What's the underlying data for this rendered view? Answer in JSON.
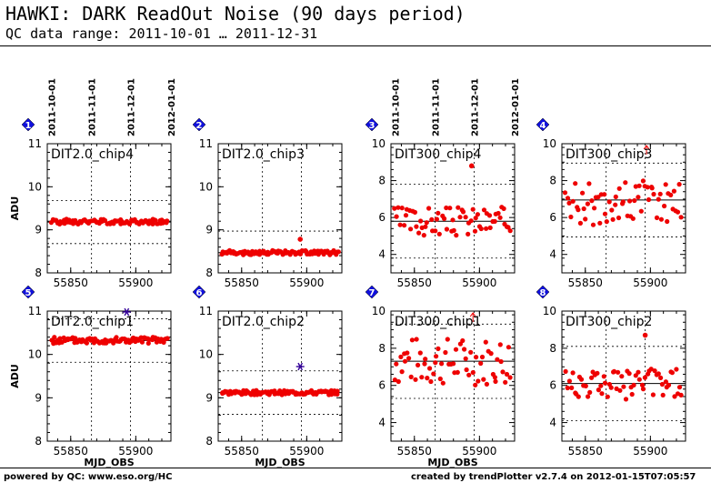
{
  "header": {
    "title": "HAWKI: DARK ReadOut Noise (90 days period)",
    "subtitle": "QC data range: 2011-10-01 … 2011-12-31"
  },
  "footer": {
    "left": "powered by QC: www.eso.org/HC",
    "right": "created by trendPlotter v2.7.4 on 2012-01-15T07:05:57"
  },
  "colors": {
    "points": "#ee0000",
    "outlier_star": "#330099",
    "marker_badge": "#1010dd",
    "arrow": "#ee0000"
  },
  "chart_data": [
    {
      "type": "scatter",
      "panel": "1",
      "label": "DIT2.0_chip4",
      "ylabel": "ADU",
      "xlabel": "",
      "ylim": [
        8,
        11
      ],
      "yticks": [
        8,
        9,
        10,
        11
      ],
      "xlim": [
        55832,
        55927
      ],
      "xticks": [
        55850,
        55900
      ],
      "date_ticks": [
        "2011-10-01",
        "2011-11-01",
        "2011-12-01",
        "2012-01-01"
      ],
      "mean": 9.18,
      "sigma_lines": [
        8.68,
        9.68
      ],
      "point_range": [
        9.13,
        9.25
      ],
      "n_points": 95,
      "seed": 1,
      "outliers": [],
      "stars": [],
      "arrows": []
    },
    {
      "type": "scatter",
      "panel": "2",
      "label": "DIT2.0_chip3",
      "ylabel": "",
      "xlabel": "",
      "ylim": [
        8,
        11
      ],
      "yticks": [
        8,
        9,
        10,
        11
      ],
      "xlim": [
        55832,
        55927
      ],
      "xticks": [
        55850,
        55900
      ],
      "date_ticks": [],
      "mean": 8.47,
      "sigma_lines": [
        8.97
      ],
      "point_range": [
        8.42,
        8.52
      ],
      "n_points": 95,
      "seed": 2,
      "outliers": [
        {
          "x": 55895,
          "y": 8.78
        }
      ],
      "stars": [],
      "arrows": []
    },
    {
      "type": "scatter",
      "panel": "3",
      "label": "DIT300_chip4",
      "ylabel": "",
      "xlabel": "",
      "ylim": [
        3,
        10
      ],
      "yticks": [
        4,
        6,
        8,
        10
      ],
      "xlim": [
        55832,
        55927
      ],
      "xticks": [
        55850,
        55900
      ],
      "date_ticks": [
        "2011-10-01",
        "2011-11-01",
        "2011-12-01",
        "2012-01-01"
      ],
      "mean": 5.8,
      "sigma_lines": [
        3.8,
        7.8
      ],
      "point_range": [
        5.0,
        6.6
      ],
      "n_points": 65,
      "seed": 3,
      "outliers": [
        {
          "x": 55894,
          "y": 8.8
        }
      ],
      "stars": [],
      "arrows": []
    },
    {
      "type": "scatter",
      "panel": "4",
      "label": "DIT300_chip3",
      "ylabel": "",
      "xlabel": "",
      "ylim": [
        3,
        10
      ],
      "yticks": [
        4,
        6,
        8,
        10
      ],
      "xlim": [
        55832,
        55927
      ],
      "xticks": [
        55850,
        55900
      ],
      "date_ticks": [],
      "mean": 6.95,
      "sigma_lines": [
        4.95,
        8.95
      ],
      "point_range": [
        5.6,
        8.0
      ],
      "n_points": 65,
      "seed": 4,
      "outliers": [],
      "stars": [],
      "arrows": [
        {
          "x": 55897,
          "y": 9.9
        }
      ]
    },
    {
      "type": "scatter",
      "panel": "5",
      "label": "DIT2.0_chip1",
      "ylabel": "ADU",
      "xlabel": "MJD_OBS",
      "ylim": [
        8,
        11
      ],
      "yticks": [
        8,
        9,
        10,
        11
      ],
      "xlim": [
        55832,
        55927
      ],
      "xticks": [
        55850,
        55900
      ],
      "date_ticks": [],
      "mean": 10.32,
      "sigma_lines": [
        9.82,
        10.82
      ],
      "point_range": [
        10.25,
        10.4
      ],
      "n_points": 95,
      "seed": 5,
      "outliers": [],
      "stars": [
        {
          "x": 55893,
          "y": 10.98
        }
      ],
      "arrows": []
    },
    {
      "type": "scatter",
      "panel": "6",
      "label": "DIT2.0_chip2",
      "ylabel": "",
      "xlabel": "MJD_OBS",
      "ylim": [
        8,
        11
      ],
      "yticks": [
        8,
        9,
        10,
        11
      ],
      "xlim": [
        55832,
        55927
      ],
      "xticks": [
        55850,
        55900
      ],
      "date_ticks": [],
      "mean": 9.12,
      "sigma_lines": [
        8.62,
        9.62
      ],
      "point_range": [
        9.07,
        9.17
      ],
      "n_points": 95,
      "seed": 6,
      "outliers": [],
      "stars": [
        {
          "x": 55895,
          "y": 9.72
        }
      ],
      "arrows": []
    },
    {
      "type": "scatter",
      "panel": "7",
      "label": "DIT300_chip1",
      "ylabel": "",
      "xlabel": "MJD_OBS",
      "ylim": [
        3,
        10
      ],
      "yticks": [
        4,
        6,
        8,
        10
      ],
      "xlim": [
        55832,
        55927
      ],
      "xticks": [
        55850,
        55900
      ],
      "date_ticks": [],
      "mean": 7.3,
      "sigma_lines": [
        5.3,
        9.3
      ],
      "point_range": [
        6.0,
        8.6
      ],
      "n_points": 65,
      "seed": 7,
      "outliers": [],
      "stars": [],
      "arrows": [
        {
          "x": 55895,
          "y": 9.9
        }
      ]
    },
    {
      "type": "scatter",
      "panel": "8",
      "label": "DIT300_chip2",
      "ylabel": "",
      "xlabel": "",
      "ylim": [
        3,
        10
      ],
      "yticks": [
        4,
        6,
        8,
        10
      ],
      "xlim": [
        55832,
        55927
      ],
      "xticks": [
        55850,
        55900
      ],
      "date_ticks": [],
      "mean": 6.1,
      "sigma_lines": [
        4.1,
        8.1
      ],
      "point_range": [
        5.2,
        6.9
      ],
      "n_points": 65,
      "seed": 8,
      "outliers": [
        {
          "x": 55896,
          "y": 8.7
        }
      ],
      "stars": [],
      "arrows": []
    }
  ]
}
